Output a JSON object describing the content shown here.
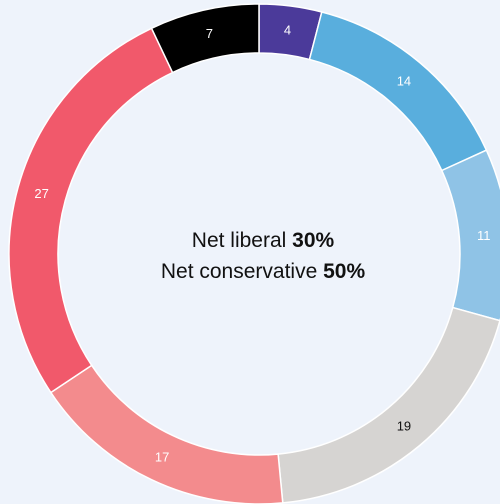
{
  "chart_data": {
    "type": "pie",
    "donut": true,
    "categories": [
      "",
      "",
      "",
      "",
      "",
      "",
      ""
    ],
    "values": [
      4,
      14,
      11,
      19,
      17,
      27,
      7
    ],
    "colors": [
      "#4b3a9a",
      "#59aedd",
      "#8fc3e6",
      "#d6d4d2",
      "#f38b8d",
      "#f1596b",
      "#000000"
    ],
    "label_colors": [
      "#ffffff",
      "#ffffff",
      "#ffffff",
      "#111111",
      "#ffffff",
      "#ffffff",
      "#ffffff"
    ],
    "start_angle_deg": 0,
    "direction": "clockwise",
    "legend": "none",
    "annotations": {
      "line1_text": "Net liberal ",
      "line1_value": "30%",
      "line2_text": "Net conservative ",
      "line2_value": "50%"
    }
  }
}
